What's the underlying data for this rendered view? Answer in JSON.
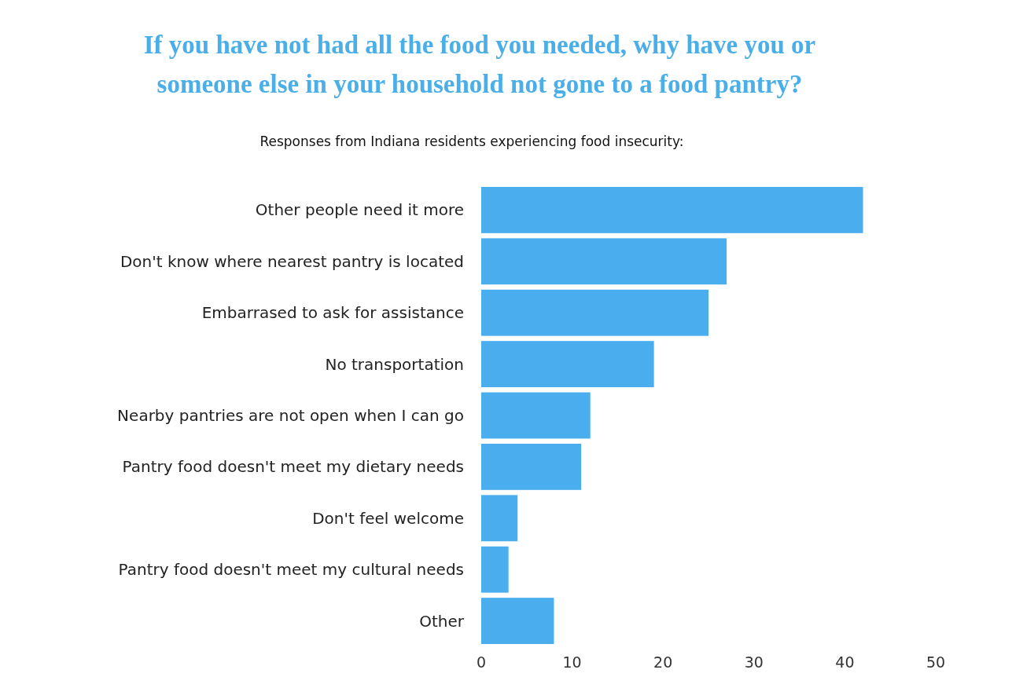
{
  "chart_data": {
    "type": "bar",
    "orientation": "horizontal",
    "title": "If you have not had all the food you needed, why have you or someone else in your household not gone to a food pantry?",
    "subtitle": "Responses from Indiana residents experiencing food insecurity:",
    "categories": [
      "Other people need it more",
      "Don't know where nearest pantry is located",
      "Embarrased to ask for assistance",
      "No transportation",
      "Nearby pantries are not open when I can go",
      "Pantry food doesn't meet my dietary needs",
      "Don't feel welcome",
      "Pantry food doesn't meet my cultural needs",
      "Other"
    ],
    "values": [
      42,
      27,
      25,
      19,
      12,
      11,
      4,
      3,
      8
    ],
    "color": "#4aaeee",
    "xlim": [
      0,
      50
    ],
    "xticks": [
      0,
      10,
      20,
      30,
      40,
      50
    ],
    "grid": false
  }
}
